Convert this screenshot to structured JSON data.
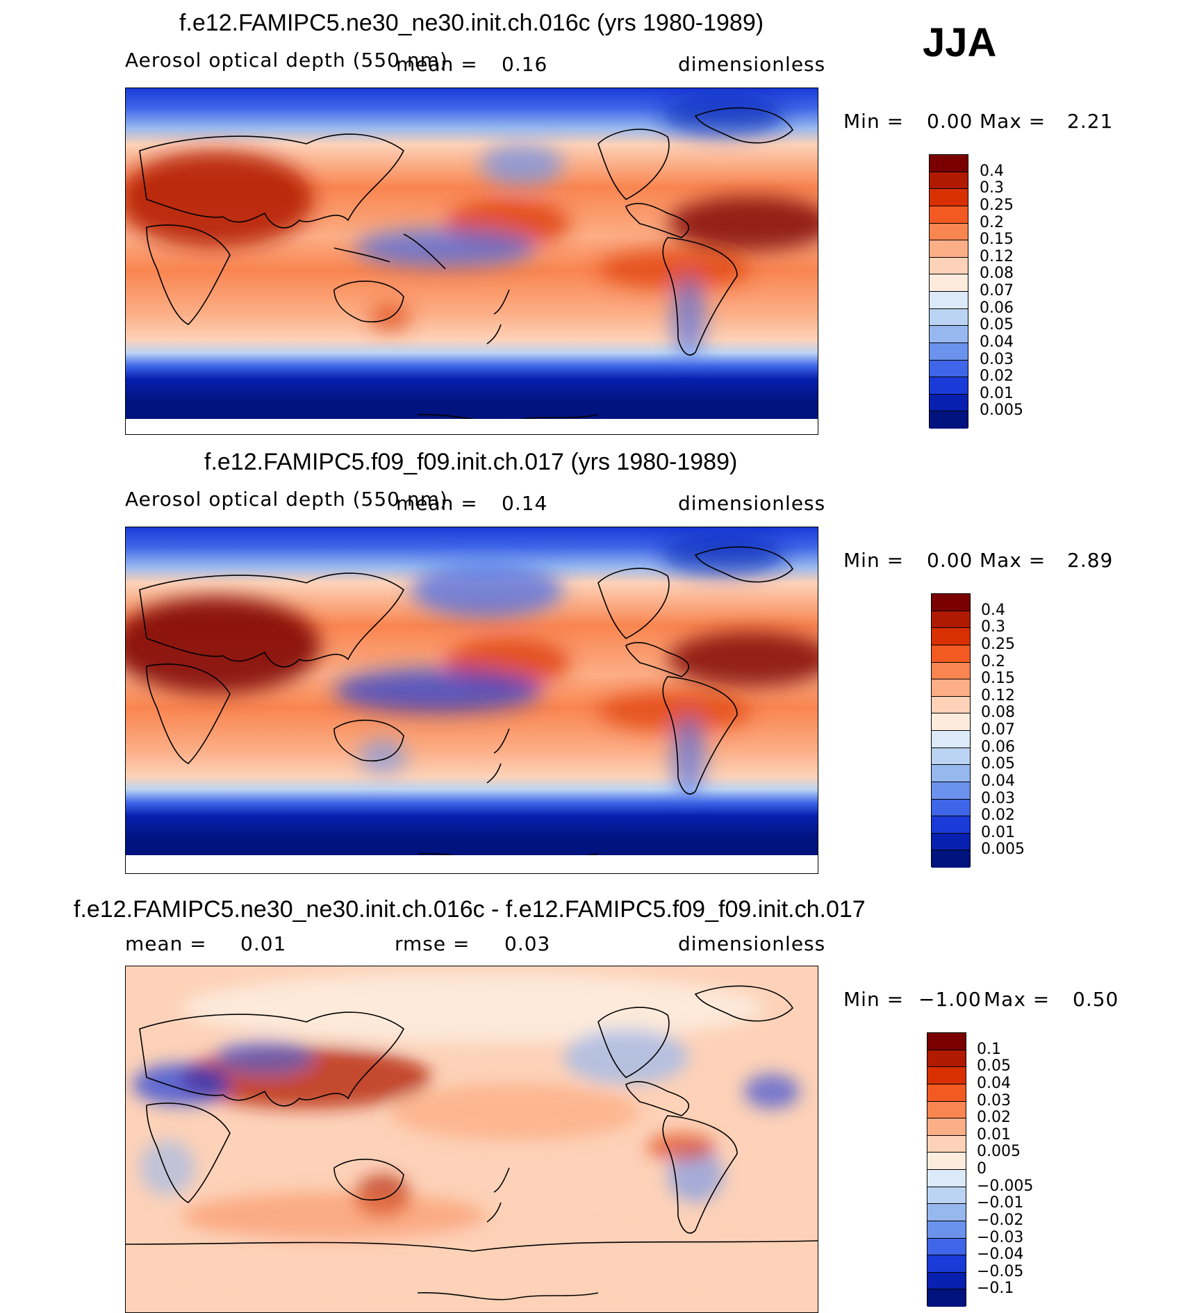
{
  "season": "JJA",
  "panels": [
    {
      "title": "f.e12.FAMIPC5.ne30_ne30.init.ch.016c (yrs 1980-1989)",
      "left_label": "Aerosol optical depth (550 nm)",
      "mean_label": "mean =",
      "mean_value": "0.16",
      "units": "dimensionless",
      "min_label": "Min =",
      "min_value": "0.00",
      "max_label": "Max =",
      "max_value": "2.21"
    },
    {
      "title": "f.e12.FAMIPC5.f09_f09.init.ch.017 (yrs 1980-1989)",
      "left_label": "Aerosol optical depth (550 nm)",
      "mean_label": "mean =",
      "mean_value": "0.14",
      "units": "dimensionless",
      "min_label": "Min =",
      "min_value": "0.00",
      "max_label": "Max =",
      "max_value": "2.89"
    },
    {
      "title": "f.e12.FAMIPC5.ne30_ne30.init.ch.016c - f.e12.FAMIPC5.f09_f09.init.ch.017",
      "mean_label": "mean =",
      "mean_value": "0.01",
      "rmse_label": "rmse =",
      "rmse_value": "0.03",
      "units": "dimensionless",
      "min_label": "Min =",
      "min_value": "−1.00",
      "max_label": "Max =",
      "max_value": "0.50"
    }
  ],
  "colorbars": {
    "abs_levels": [
      "0.4",
      "0.3",
      "0.25",
      "0.2",
      "0.15",
      "0.12",
      "0.08",
      "0.07",
      "0.06",
      "0.05",
      "0.04",
      "0.03",
      "0.02",
      "0.01",
      "0.005"
    ],
    "abs_colors": [
      "#7a0000",
      "#b01a00",
      "#d83000",
      "#f25a22",
      "#f98550",
      "#fcae86",
      "#fdd2b8",
      "#fdecde",
      "#dce9f8",
      "#bcd4f3",
      "#97b8ef",
      "#6b92ec",
      "#3f66e8",
      "#1a3bd8",
      "#0820b0",
      "#00137e"
    ],
    "diff_levels": [
      "0.1",
      "0.05",
      "0.04",
      "0.03",
      "0.02",
      "0.01",
      "0.005",
      "0",
      "−0.005",
      "−0.01",
      "−0.02",
      "−0.03",
      "−0.04",
      "−0.05",
      "−0.1"
    ],
    "diff_colors": [
      "#7a0000",
      "#b01a00",
      "#d83000",
      "#f25a22",
      "#f98550",
      "#fcae86",
      "#fdd2b8",
      "#fdecde",
      "#dce9f8",
      "#bcd4f3",
      "#97b8ef",
      "#6b92ec",
      "#3f66e8",
      "#1a3bd8",
      "#0820b0",
      "#00137e"
    ]
  }
}
